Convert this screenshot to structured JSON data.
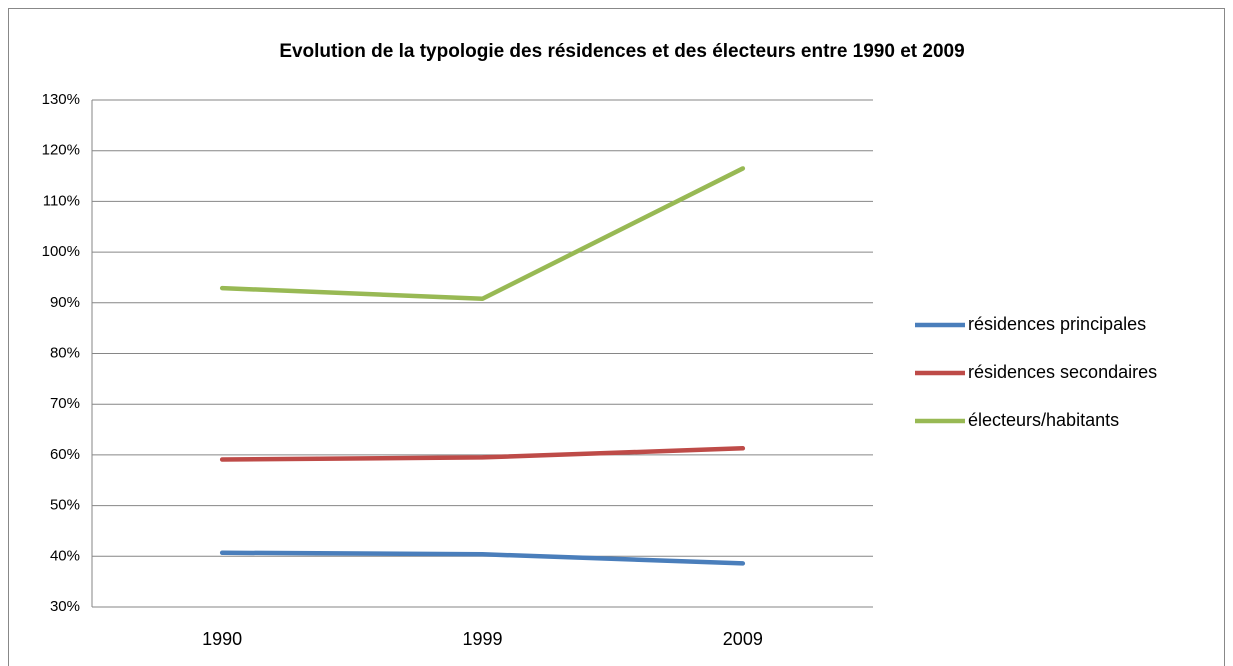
{
  "chart_data": {
    "type": "line",
    "title": "Evolution de la typologie des résidences et des électeurs entre 1990 et 2009",
    "categories": [
      "1990",
      "1999",
      "2009"
    ],
    "series": [
      {
        "name": "résidences principales",
        "color": "#4a7ebb",
        "values": [
          40.7,
          40.4,
          38.6
        ]
      },
      {
        "name": "résidences secondaires",
        "color": "#be4b48",
        "values": [
          59.1,
          59.5,
          61.3
        ]
      },
      {
        "name": "électeurs/habitants",
        "color": "#98b954",
        "values": [
          92.9,
          90.8,
          116.5
        ]
      }
    ],
    "ylim": [
      30,
      130
    ],
    "yticks": [
      {
        "value": 30,
        "label": "30%"
      },
      {
        "value": 40,
        "label": "40%"
      },
      {
        "value": 50,
        "label": "50%"
      },
      {
        "value": 60,
        "label": "60%"
      },
      {
        "value": 70,
        "label": "70%"
      },
      {
        "value": 80,
        "label": "80%"
      },
      {
        "value": 90,
        "label": "90%"
      },
      {
        "value": 100,
        "label": "100%"
      },
      {
        "value": 110,
        "label": "110%"
      },
      {
        "value": 120,
        "label": "120%"
      },
      {
        "value": 130,
        "label": "130%"
      }
    ],
    "grid": true,
    "legend": "right"
  }
}
